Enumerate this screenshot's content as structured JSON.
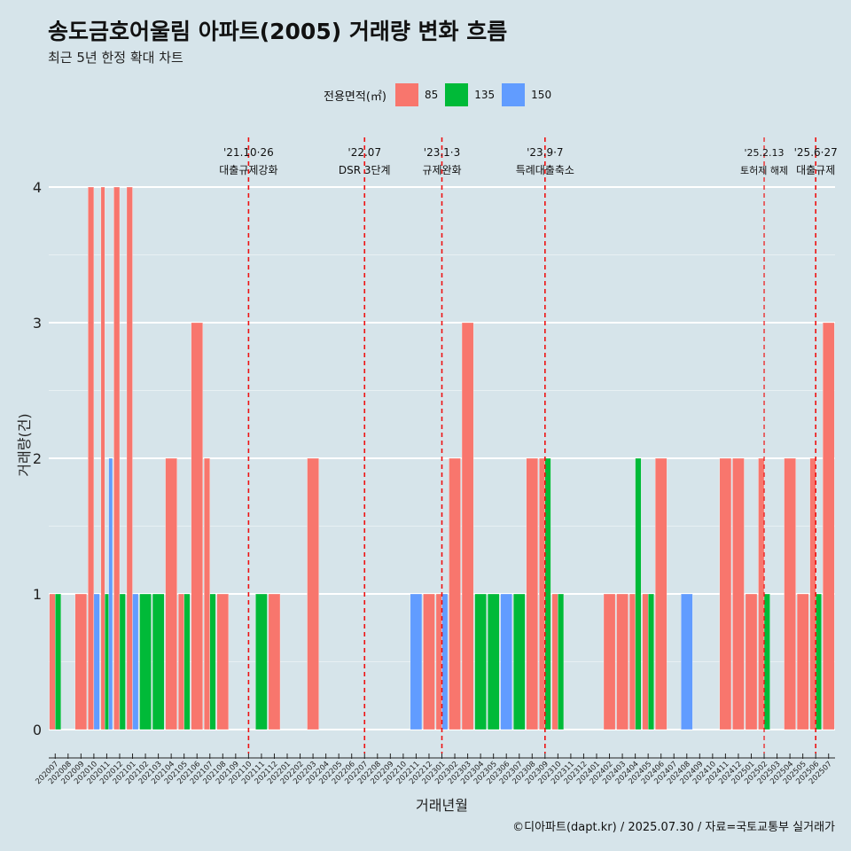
{
  "chart_data": {
    "type": "bar",
    "title": "송도금호어울림 아파트(2005) 거래량 변화 흐름",
    "subtitle": "최근 5년 한정 확대 차트",
    "xlabel": "거래년월",
    "ylabel": "거래량(건)",
    "ylim": [
      0,
      4
    ],
    "yticks": [
      0,
      1,
      2,
      3,
      4
    ],
    "grid": true,
    "legend": {
      "title": "전용면적(㎡)",
      "placement": "top"
    },
    "categories": [
      "202007",
      "202008",
      "202009",
      "202010",
      "202011",
      "202012",
      "202101",
      "202102",
      "202103",
      "202104",
      "202105",
      "202106",
      "202107",
      "202108",
      "202109",
      "202110",
      "202111",
      "202112",
      "202201",
      "202202",
      "202203",
      "202204",
      "202205",
      "202206",
      "202207",
      "202208",
      "202209",
      "202210",
      "202211",
      "202212",
      "202301",
      "202302",
      "202303",
      "202304",
      "202305",
      "202306",
      "202307",
      "202308",
      "202309",
      "202310",
      "202311",
      "202312",
      "202401",
      "202402",
      "202403",
      "202404",
      "202405",
      "202406",
      "202407",
      "202408",
      "202409",
      "202410",
      "202411",
      "202412",
      "202501",
      "202502",
      "202503",
      "202504",
      "202505",
      "202506",
      "202507"
    ],
    "series": [
      {
        "name": "85",
        "color": "#F8766D",
        "values": [
          1,
          0,
          1,
          4,
          4,
          4,
          4,
          0,
          0,
          2,
          1,
          3,
          2,
          1,
          0,
          0,
          0,
          1,
          0,
          0,
          2,
          0,
          0,
          0,
          0,
          0,
          0,
          0,
          0,
          1,
          1,
          2,
          3,
          0,
          0,
          0,
          0,
          2,
          2,
          1,
          0,
          0,
          0,
          1,
          1,
          1,
          1,
          2,
          0,
          0,
          0,
          0,
          2,
          2,
          1,
          2,
          0,
          2,
          1,
          2,
          3
        ]
      },
      {
        "name": "135",
        "color": "#00BA38",
        "values": [
          1,
          0,
          0,
          0,
          1,
          1,
          0,
          1,
          1,
          0,
          1,
          0,
          1,
          0,
          0,
          0,
          1,
          0,
          0,
          0,
          0,
          0,
          0,
          0,
          0,
          0,
          0,
          0,
          0,
          0,
          0,
          0,
          0,
          1,
          1,
          0,
          1,
          0,
          2,
          1,
          0,
          0,
          0,
          0,
          0,
          2,
          1,
          0,
          0,
          0,
          0,
          0,
          0,
          0,
          0,
          1,
          0,
          0,
          0,
          1,
          0
        ]
      },
      {
        "name": "150",
        "color": "#619CFF",
        "values": [
          0,
          0,
          0,
          1,
          2,
          0,
          1,
          0,
          0,
          0,
          0,
          0,
          0,
          0,
          0,
          0,
          0,
          0,
          0,
          0,
          0,
          0,
          0,
          0,
          0,
          0,
          0,
          0,
          1,
          0,
          1,
          0,
          0,
          0,
          0,
          1,
          0,
          0,
          0,
          0,
          0,
          0,
          0,
          0,
          0,
          0,
          0,
          0,
          0,
          1,
          0,
          0,
          0,
          0,
          0,
          0,
          0,
          0,
          0,
          0,
          0
        ]
      }
    ],
    "annotations": [
      {
        "x": "202110",
        "line1": "'21.10·26",
        "line2": "대출규제강화"
      },
      {
        "x": "202207",
        "line1": "'22.07",
        "line2": "DSR 3단계"
      },
      {
        "x": "202301",
        "line1": "'23.1·3",
        "line2": "규제완화"
      },
      {
        "x": "202309",
        "line1": "'23.9·7",
        "line2": "특례대출축소"
      },
      {
        "x": "202502",
        "line1": "'25.2.13",
        "line2": "토허제 해제"
      },
      {
        "x": "202506",
        "line1": "'25.6·27",
        "line2": "대출규제"
      }
    ]
  },
  "caption": "©디아파트(dapt.kr) / 2025.07.30 / 자료=국토교통부 실거래가"
}
